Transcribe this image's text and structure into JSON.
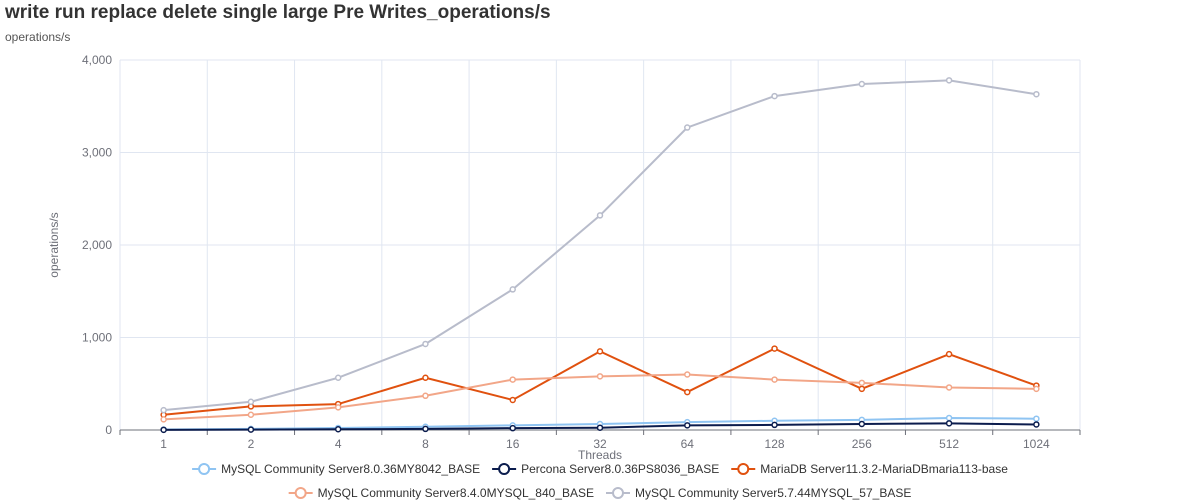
{
  "header": {
    "title": "write run replace delete single large Pre Writes_operations/s",
    "subtitle": "operations/s"
  },
  "chart_data": {
    "type": "line",
    "title": "write run replace delete single large Pre Writes_operations/s",
    "xlabel": "Threads",
    "ylabel": "operations/s",
    "categories": [
      "1",
      "2",
      "4",
      "8",
      "16",
      "32",
      "64",
      "128",
      "256",
      "512",
      "1024"
    ],
    "ylim": [
      0,
      4000
    ],
    "yticks": [
      0,
      1000,
      2000,
      3000,
      4000
    ],
    "ytick_labels": [
      "0",
      "1,000",
      "2,000",
      "3,000",
      "4,000"
    ],
    "grid": true,
    "legend_position": "bottom",
    "series": [
      {
        "name": "MySQL Community Server8.0.36MY8042_BASE",
        "color": "#8fc4f2",
        "values": [
          5,
          12,
          22,
          35,
          50,
          65,
          85,
          100,
          110,
          130,
          122
        ]
      },
      {
        "name": "Percona Server8.0.36PS8036_BASE",
        "color": "#0b1c4d",
        "values": [
          2,
          4,
          8,
          12,
          20,
          25,
          50,
          55,
          65,
          72,
          60
        ]
      },
      {
        "name": "MariaDB Server11.3.2-MariaDBmaria113-base",
        "color": "#e0510f",
        "values": [
          165,
          255,
          280,
          565,
          325,
          850,
          410,
          880,
          445,
          820,
          480
        ]
      },
      {
        "name": "MySQL Community Server8.4.0MYSQL_840_BASE",
        "color": "#f2a688",
        "values": [
          115,
          165,
          245,
          370,
          545,
          580,
          600,
          545,
          510,
          460,
          445
        ]
      },
      {
        "name": "MySQL Community Server5.7.44MYSQL_57_BASE",
        "color": "#b8bccb",
        "values": [
          215,
          305,
          565,
          930,
          1520,
          2320,
          3270,
          3610,
          3740,
          3780,
          3630
        ]
      }
    ]
  }
}
